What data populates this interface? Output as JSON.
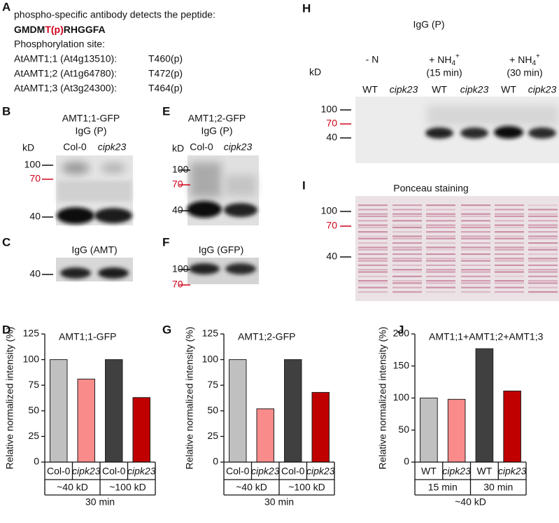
{
  "panel_labels": [
    "A",
    "B",
    "C",
    "D",
    "E",
    "F",
    "G",
    "H",
    "I",
    "J"
  ],
  "panel_a": {
    "intro": "phospho-specific antibody detects the peptide:",
    "peptide": [
      "GMDM",
      "T(p)",
      "RHGGFA"
    ],
    "site_heading": "Phosphorylation site:",
    "sites": [
      [
        "AtAMT1;1 (At4g13510):",
        "T460(p)"
      ],
      [
        "AtAMT1;2 (At1g64780):",
        "T472(p)"
      ],
      [
        "AtAMT1;3 (At3g24300):",
        "T464(p)"
      ]
    ]
  },
  "blots": {
    "B": {
      "title": "AMT1;1-GFP",
      "antibody": "IgG (P)",
      "unit": "kD",
      "lanes": [
        "Col-0",
        "cipk23"
      ],
      "markers": [
        "100",
        "70",
        "40"
      ]
    },
    "C": {
      "antibody": "IgG (AMT)",
      "markers": [
        "40"
      ]
    },
    "E": {
      "title": "AMT1;2-GFP",
      "antibody": "IgG (P)",
      "unit": "kD",
      "lanes": [
        "Col-0",
        "cipk23"
      ],
      "markers": [
        "100",
        "70",
        "40"
      ]
    },
    "F": {
      "antibody": "IgG (GFP)",
      "markers": [
        "100",
        "70"
      ]
    },
    "H": {
      "antibody": "IgG (P)",
      "unit": "kD",
      "conditions": [
        "- N"
      ],
      "ammonium": [
        "+ NH",
        "4",
        "+"
      ],
      "times": [
        "(15 min)",
        "(30 min)"
      ],
      "lanes": [
        "WT",
        "cipk23",
        "WT",
        "cipk23",
        "WT",
        "cipk23"
      ],
      "markers": [
        "100",
        "70",
        "40"
      ]
    },
    "I": {
      "title": "Ponceau staining",
      "markers": [
        "100",
        "70",
        "40"
      ]
    }
  },
  "chart_data": [
    {
      "type": "bar",
      "title": "AMT1;1-GFP",
      "y_label": "Relative normalized intensity (%)",
      "categories": [
        "Col-0",
        "cipk23",
        "Col-0",
        "cipk23"
      ],
      "values": [
        100,
        81,
        100,
        63
      ],
      "colors": [
        "#c0c0c0",
        "#f98b8b",
        "#404040",
        "#c00000"
      ],
      "groups": [
        "~40 kD",
        "~100 kD"
      ],
      "footer": "30 min",
      "ylim": [
        0,
        125
      ],
      "yticks": [
        0,
        25,
        50,
        75,
        100,
        125
      ]
    },
    {
      "type": "bar",
      "title": "AMT1;2-GFP",
      "y_label": "Relative normalized intensity (%)",
      "categories": [
        "Col-0",
        "cipk23",
        "Col-0",
        "cipk23"
      ],
      "values": [
        100,
        52,
        100,
        68
      ],
      "colors": [
        "#c0c0c0",
        "#f98b8b",
        "#404040",
        "#c00000"
      ],
      "groups": [
        "~40 kD",
        "~100 kD"
      ],
      "footer": "30 min",
      "ylim": [
        0,
        125
      ],
      "yticks": [
        0,
        25,
        50,
        75,
        100,
        125
      ]
    },
    {
      "type": "bar",
      "title": "AMT1;1+AMT1;2+AMT1;3",
      "y_label": "Relative normalized intensity (%)",
      "categories": [
        "WT",
        "cipk23",
        "WT",
        "cipk23"
      ],
      "values": [
        100,
        98,
        177,
        111
      ],
      "colors": [
        "#c0c0c0",
        "#f98b8b",
        "#404040",
        "#c00000"
      ],
      "groups": [
        "15 min",
        "30 min"
      ],
      "footer": "~40 kD",
      "ylim": [
        0,
        200
      ],
      "yticks": [
        0,
        50,
        100,
        150,
        200
      ]
    }
  ]
}
